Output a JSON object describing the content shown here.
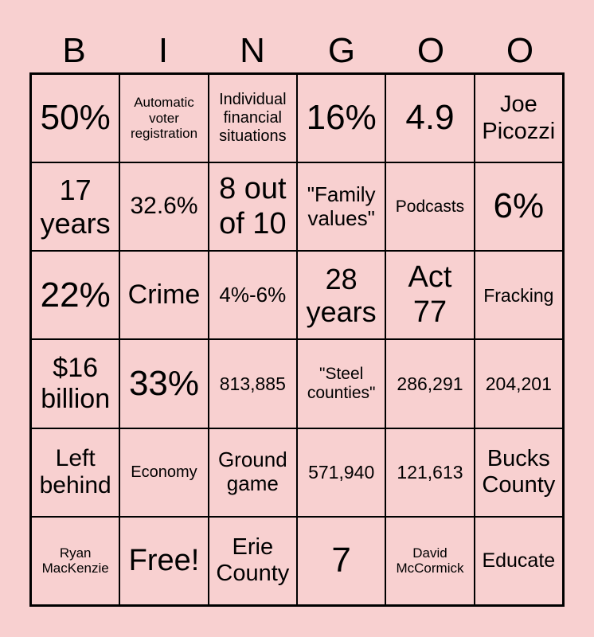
{
  "header": [
    "B",
    "I",
    "N",
    "G",
    "O",
    "O"
  ],
  "background_color": "#f8d0d0",
  "rows": [
    [
      "50%",
      "Automatic voter registration",
      "Individual financial situations",
      "16%",
      "4.9",
      "Joe Picozzi"
    ],
    [
      "17 years",
      "32.6%",
      "8 out of 10",
      "\"Family values\"",
      "Podcasts",
      "6%"
    ],
    [
      "22%",
      "Crime",
      "4%-6%",
      "28 years",
      "Act 77",
      "Fracking"
    ],
    [
      "$16 billion",
      "33%",
      "813,885",
      "\"Steel counties\"",
      "286,291",
      "204,201"
    ],
    [
      "Left behind",
      "Economy",
      "Ground game",
      "571,940",
      "121,613",
      "Bucks County"
    ],
    [
      "Ryan MacKenzie",
      "Free!",
      "Erie County",
      "7",
      "David McCormick",
      "Educate"
    ]
  ]
}
